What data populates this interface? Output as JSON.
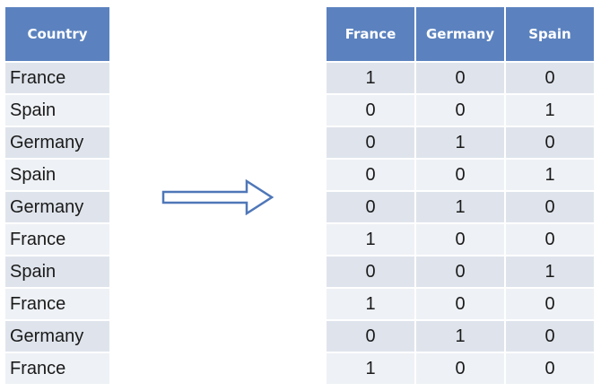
{
  "left_table": {
    "header": "Country",
    "rows": [
      "France",
      "Spain",
      "Germany",
      "Spain",
      "Germany",
      "France",
      "Spain",
      "France",
      "Germany",
      "France"
    ]
  },
  "right_table": {
    "headers": [
      "France",
      "Germany",
      "Spain"
    ],
    "rows": [
      [
        "1",
        "0",
        "0"
      ],
      [
        "0",
        "0",
        "1"
      ],
      [
        "0",
        "1",
        "0"
      ],
      [
        "0",
        "0",
        "1"
      ],
      [
        "0",
        "1",
        "0"
      ],
      [
        "1",
        "0",
        "0"
      ],
      [
        "0",
        "0",
        "1"
      ],
      [
        "1",
        "0",
        "0"
      ],
      [
        "0",
        "1",
        "0"
      ],
      [
        "1",
        "0",
        "0"
      ]
    ]
  },
  "colors": {
    "header_bg": "#5b82bf",
    "row_odd": "#dfe4ec",
    "row_even": "#eef1f5",
    "arrow_stroke": "#4f77b8"
  },
  "arrow_icon": "right-arrow-icon"
}
